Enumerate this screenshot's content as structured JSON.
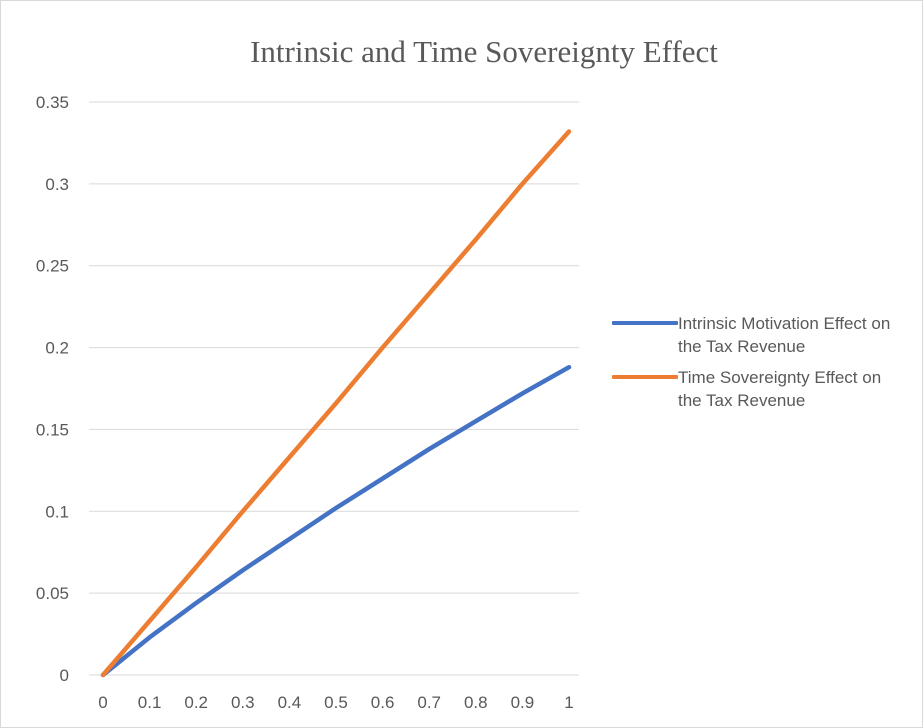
{
  "chart_data": {
    "type": "line",
    "title": "Intrinsic and Time Sovereignty Effect",
    "xlabel": "",
    "ylabel": "",
    "x": [
      0,
      0.1,
      0.2,
      0.3,
      0.4,
      0.5,
      0.6,
      0.7,
      0.8,
      0.9,
      1
    ],
    "x_tick_labels": [
      "0",
      "0.1",
      "0.2",
      "0.3",
      "0.4",
      "0.5",
      "0.6",
      "0.7",
      "0.8",
      "0.9",
      "1"
    ],
    "ylim": [
      0,
      0.35
    ],
    "y_ticks": [
      0,
      0.05,
      0.1,
      0.15,
      0.2,
      0.25,
      0.3,
      0.35
    ],
    "y_tick_labels": [
      "0",
      "0.05",
      "0.1",
      "0.15",
      "0.2",
      "0.25",
      "0.3",
      "0.35"
    ],
    "grid": "horizontal",
    "legend_position": "right",
    "series": [
      {
        "name": "Intrinsic Motivation Effect on the Tax Revenue",
        "color": "#4472c4",
        "values": [
          0,
          0.023,
          0.044,
          0.064,
          0.083,
          0.102,
          0.12,
          0.138,
          0.155,
          0.172,
          0.188
        ]
      },
      {
        "name": "Time Sovereignty Effect on the Tax Revenue",
        "color": "#ed7d31",
        "values": [
          0,
          0.033,
          0.066,
          0.1,
          0.133,
          0.166,
          0.2,
          0.233,
          0.266,
          0.3,
          0.332
        ]
      }
    ]
  }
}
